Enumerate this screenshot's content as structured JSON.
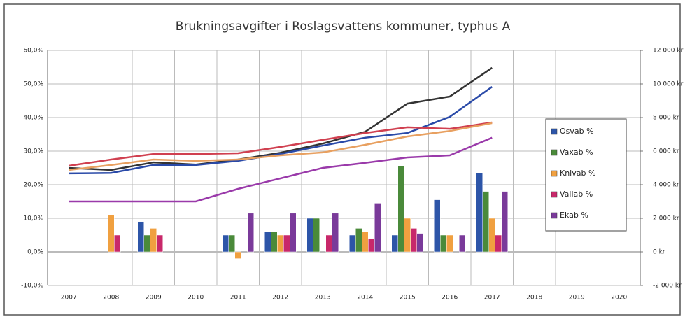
{
  "chart_data": {
    "type": "bar",
    "title": "Brukningsavgifter i Roslagsvattens kommuner, typhus A",
    "categories": [
      "2007",
      "2008",
      "2009",
      "2010",
      "2011",
      "2012",
      "2013",
      "2014",
      "2015",
      "2016",
      "2017",
      "2018",
      "2019",
      "2020"
    ],
    "ylim": [
      -10,
      60
    ],
    "yticks": [
      {
        "value": 60,
        "label": "60,0%"
      },
      {
        "value": 50,
        "label": "50,0%"
      },
      {
        "value": 40,
        "label": "40,0%"
      },
      {
        "value": 30,
        "label": "30,0%"
      },
      {
        "value": 20,
        "label": "20,0%"
      },
      {
        "value": 10,
        "label": "10,0%"
      },
      {
        "value": 0,
        "label": "0,0%"
      },
      {
        "value": -10,
        "label": "-10,0%"
      }
    ],
    "y2lim": [
      -2000,
      12000
    ],
    "y2ticks": [
      {
        "value": 12000,
        "label": "12 000 kr"
      },
      {
        "value": 10000,
        "label": "10 000 kr"
      },
      {
        "value": 8000,
        "label": "8 000 kr"
      },
      {
        "value": 6000,
        "label": "6 000 kr"
      },
      {
        "value": 4000,
        "label": "4 000 kr"
      },
      {
        "value": 2000,
        "label": "2 000 kr"
      },
      {
        "value": 0,
        "label": "0 kr"
      },
      {
        "value": -2000,
        "label": "-2 000 kr"
      }
    ],
    "grid": true,
    "legend": "right",
    "series": [
      {
        "name": "Ösvab %",
        "type": "bar",
        "color": "#2d55a8",
        "values": [
          null,
          null,
          9,
          null,
          5,
          6,
          10,
          5,
          5,
          15.5,
          23.5,
          null,
          null,
          null
        ]
      },
      {
        "name": "Vaxab %",
        "type": "bar",
        "color": "#4a8a3a",
        "values": [
          null,
          null,
          5,
          null,
          5,
          6,
          10,
          7,
          25.5,
          5,
          18,
          null,
          null,
          null
        ]
      },
      {
        "name": "Knivab %",
        "type": "bar",
        "color": "#f0a040",
        "values": [
          null,
          11,
          7,
          null,
          -2,
          5,
          null,
          6,
          10,
          5,
          10,
          null,
          null,
          null
        ]
      },
      {
        "name": "Vallab %",
        "type": "bar",
        "color": "#c8286a",
        "values": [
          null,
          5,
          5,
          null,
          null,
          5,
          5,
          4,
          7,
          null,
          5,
          null,
          null,
          null
        ]
      },
      {
        "name": "Ekab %",
        "type": "bar",
        "color": "#7a3a9a",
        "values": [
          null,
          null,
          null,
          null,
          11.5,
          11.5,
          11.5,
          14.5,
          5.5,
          5,
          18,
          null,
          null,
          null
        ]
      },
      {
        "type": "line",
        "axis": "y2",
        "color": "#333333",
        "values": [
          5000,
          4875,
          5330,
          5200,
          5500,
          5900,
          6450,
          7150,
          8830,
          9250,
          10960,
          null,
          null,
          null
        ]
      },
      {
        "type": "line",
        "axis": "y2",
        "color": "#2a4aa8",
        "values": [
          4670,
          4700,
          5170,
          5170,
          5420,
          5830,
          6330,
          6800,
          7080,
          8040,
          9830,
          null,
          null,
          null
        ]
      },
      {
        "type": "line",
        "axis": "y2",
        "color": "#d04050",
        "values": [
          5125,
          5500,
          5830,
          5830,
          5875,
          6250,
          6670,
          7080,
          7420,
          7330,
          7710,
          null,
          null,
          null
        ]
      },
      {
        "type": "line",
        "axis": "y2",
        "color": "#e8a060",
        "values": [
          4875,
          5170,
          5500,
          5420,
          5500,
          5750,
          5920,
          6375,
          6875,
          7200,
          7670,
          null,
          null,
          null
        ]
      },
      {
        "type": "line",
        "axis": "y2",
        "color": "#9a3aaa",
        "values": [
          3000,
          3000,
          3000,
          3000,
          3750,
          4375,
          5000,
          5300,
          5625,
          5750,
          6800,
          null,
          null,
          null
        ]
      }
    ]
  }
}
